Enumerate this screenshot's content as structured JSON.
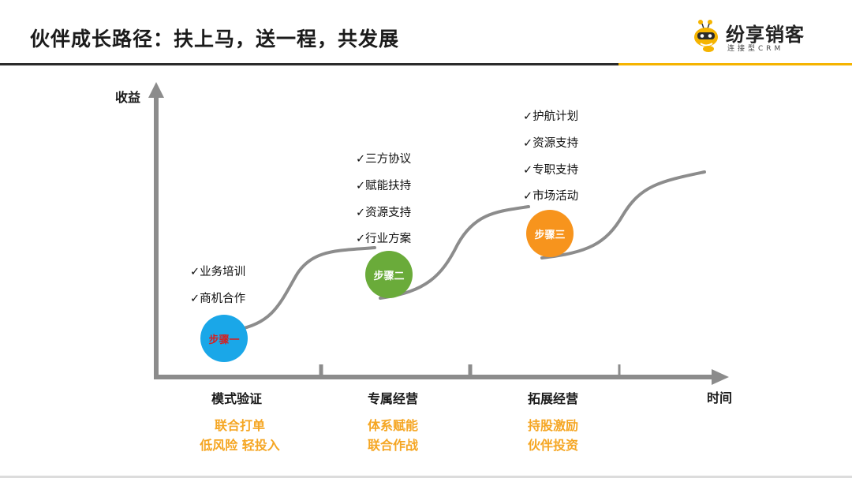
{
  "title": "伙伴成长路径：扶上马，送一程，共发展",
  "logo": {
    "name": "纷享销客",
    "tagline": "连接型CRM",
    "accent": "#f5b400"
  },
  "axes": {
    "y_label": "收益",
    "x_label": "时间"
  },
  "steps": [
    {
      "label": "步骤一",
      "color": "#1aa7e8"
    },
    {
      "label": "步骤二",
      "color": "#6aab3a"
    },
    {
      "label": "步骤三",
      "color": "#f7941d"
    }
  ],
  "stages": [
    {
      "name": "模式验证",
      "subs": [
        "联合打单",
        "低风险 轻投入"
      ]
    },
    {
      "name": "专属经营",
      "subs": [
        "体系赋能",
        "联合作战"
      ]
    },
    {
      "name": "拓展经营",
      "subs": [
        "持股激励",
        "伙伴投资"
      ]
    }
  ],
  "checklists": {
    "step1": [
      "✓业务培训",
      "✓商机合作"
    ],
    "step2": [
      "✓三方协议",
      "✓赋能扶持",
      "✓资源支持",
      "✓行业方案"
    ],
    "step3": [
      "✓护航计划",
      "✓资源支持",
      "✓专职支持",
      "✓市场活动"
    ]
  }
}
